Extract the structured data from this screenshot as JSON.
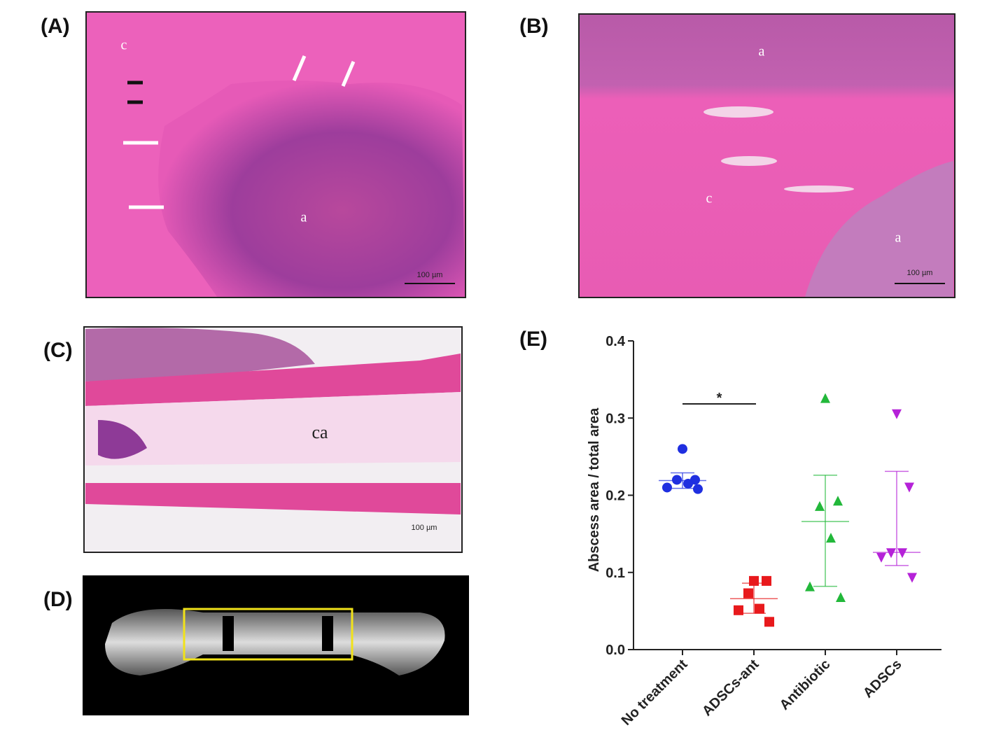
{
  "panels": {
    "A": {
      "label": "(A)",
      "annotations": [
        "c",
        "a"
      ],
      "scale_bar": "100 µm"
    },
    "B": {
      "label": "(B)",
      "annotations": [
        "a",
        "c",
        "a"
      ],
      "scale_bar": "100 µm"
    },
    "C": {
      "label": "(C)",
      "annotations": [
        "ca"
      ],
      "scale_bar": "100 µm"
    },
    "D": {
      "label": "(D)"
    },
    "E": {
      "label": "(E)"
    }
  },
  "chart_data": {
    "type": "dotplot",
    "ylabel": "Abscess area / total area",
    "categories": [
      "No treatment",
      "ADSCs-ant",
      "Antibiotic",
      "ADSCs"
    ],
    "colors": [
      "#1f2fe0",
      "#e8191c",
      "#22b83a",
      "#b522d8"
    ],
    "markers": [
      "circle",
      "square",
      "triangle",
      "triangle-down"
    ],
    "points": [
      [
        0.26,
        0.22,
        0.22,
        0.215,
        0.21,
        0.208
      ],
      [
        0.089,
        0.089,
        0.073,
        0.053,
        0.051,
        0.036
      ],
      [
        0.326,
        0.193,
        0.186,
        0.145,
        0.082,
        0.068
      ],
      [
        0.305,
        0.21,
        0.125,
        0.125,
        0.119,
        0.093
      ]
    ],
    "center": [
      0.219,
      0.066,
      0.166,
      0.126
    ],
    "lower": [
      0.209,
      0.047,
      0.082,
      0.109
    ],
    "upper": [
      0.229,
      0.086,
      0.226,
      0.231
    ],
    "significance": {
      "label": "*",
      "groups": [
        0,
        1
      ]
    },
    "ylim": [
      0,
      0.4
    ],
    "yticks": [
      {
        "value": 0,
        "label": "0.0"
      },
      0.1,
      0.2,
      0.3,
      0.4
    ]
  }
}
